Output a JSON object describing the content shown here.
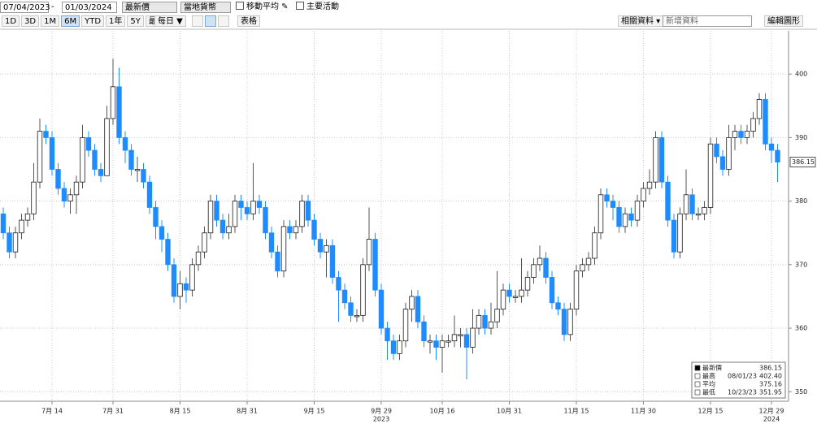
{
  "toolbar": {
    "start_date": "07/04/2023",
    "end_date": "01/03/2024",
    "price_field": "最新價",
    "currency": "當地貨幣",
    "moving_average": "移動平均",
    "key_events": "主要活動",
    "ranges": [
      "1D",
      "3D",
      "1M",
      "6M",
      "YTD",
      "1年",
      "5Y",
      "最大"
    ],
    "selected_range": "6M",
    "frequency": "每日 ▼",
    "table": "表格",
    "related": "相關資料 ▾",
    "add_data": "新增資料",
    "edit_chart": "編輯圖形"
  },
  "chart_data": {
    "type": "candlestick",
    "categories": [
      null,
      null,
      null,
      null,
      null,
      null,
      null,
      null,
      "7月 14",
      null,
      null,
      null,
      null,
      null,
      null,
      null,
      null,
      null,
      "7月 31",
      null,
      null,
      null,
      null,
      null,
      null,
      null,
      null,
      null,
      null,
      "8月 15",
      null,
      null,
      null,
      null,
      null,
      null,
      null,
      null,
      null,
      null,
      "8月 31",
      null,
      null,
      null,
      null,
      null,
      null,
      null,
      null,
      null,
      null,
      "9月 15",
      null,
      null,
      null,
      null,
      null,
      null,
      null,
      null,
      null,
      null,
      "9月 29",
      null,
      null,
      null,
      null,
      null,
      null,
      null,
      null,
      null,
      "10月 16",
      null,
      null,
      null,
      null,
      null,
      null,
      null,
      null,
      null,
      null,
      "10月 31",
      null,
      null,
      null,
      null,
      null,
      null,
      null,
      null,
      null,
      null,
      "11月 15",
      null,
      null,
      null,
      null,
      null,
      null,
      null,
      null,
      null,
      null,
      "11月 30",
      null,
      null,
      null,
      null,
      null,
      null,
      null,
      null,
      null,
      null,
      "12月 15",
      null,
      null,
      null,
      null,
      null,
      null,
      null,
      null,
      null,
      "12月 29",
      null
    ],
    "year_labels": [
      {
        "value": 62,
        "label": "2023"
      },
      {
        "value": 126,
        "label": "2024"
      }
    ],
    "open": [
      378,
      375,
      372,
      375,
      377,
      378,
      383,
      391,
      390,
      385,
      382,
      380,
      381,
      383,
      390,
      388,
      385,
      384,
      393,
      398,
      390,
      388,
      385,
      385,
      383,
      379,
      376,
      374,
      370,
      365,
      367,
      366,
      370,
      372,
      375,
      380,
      377,
      375,
      376,
      380,
      379,
      378,
      380,
      379,
      375,
      372,
      369,
      376,
      375,
      376,
      380,
      377,
      374,
      372,
      373,
      368,
      366,
      364,
      362,
      362,
      370,
      374,
      366,
      360,
      358,
      356,
      358,
      363,
      365,
      361,
      358,
      358,
      357,
      358,
      358,
      359,
      359,
      357,
      360,
      362,
      360,
      361,
      363,
      366,
      365,
      365,
      366,
      368,
      370,
      371,
      368,
      364,
      363,
      359,
      363,
      369,
      370,
      371,
      375,
      381,
      380,
      379,
      376,
      378,
      377,
      380,
      382,
      383,
      390,
      383,
      377,
      372,
      378,
      381,
      378,
      378,
      379,
      389,
      387,
      385,
      390,
      391,
      390,
      391,
      393,
      396,
      389,
      388
    ],
    "high": [
      379,
      376,
      376,
      378,
      379,
      386,
      393,
      392,
      391,
      386,
      383,
      382,
      384,
      392,
      391,
      389,
      386,
      395,
      402.4,
      401,
      391,
      389,
      387,
      386,
      384,
      380,
      377,
      375,
      371,
      369,
      368,
      371,
      373,
      376,
      381,
      381,
      378,
      378,
      381,
      381,
      380,
      386,
      381,
      380,
      376,
      373,
      377,
      377,
      377,
      381,
      381,
      378,
      375,
      374,
      374,
      369,
      367,
      365,
      363,
      371,
      379,
      375,
      367,
      361,
      359,
      359,
      364,
      366,
      366,
      362,
      359,
      359,
      359,
      359,
      362,
      360,
      360,
      363,
      363,
      363,
      364,
      369,
      367,
      367,
      366,
      371,
      369,
      371,
      373,
      372,
      369,
      365,
      364,
      364,
      370,
      371,
      372,
      376,
      382,
      382,
      381,
      380,
      379,
      379,
      381,
      383,
      385,
      391,
      391,
      384,
      378,
      379,
      385,
      382,
      379,
      380,
      390,
      390,
      388,
      392,
      392,
      392,
      392,
      394,
      397,
      397,
      390,
      389
    ],
    "low": [
      374,
      371,
      371,
      374,
      376,
      377,
      382,
      389,
      384,
      381,
      379,
      378,
      378,
      382,
      387,
      384,
      383,
      384,
      392,
      389,
      386,
      384,
      383,
      382,
      378,
      374,
      372,
      369,
      364,
      363,
      364,
      365,
      369,
      371,
      374,
      376,
      374,
      374,
      375,
      377,
      377,
      377,
      378,
      374,
      371,
      368,
      368,
      374,
      374,
      375,
      376,
      373,
      371,
      368,
      367,
      361,
      363,
      361,
      361,
      361,
      369,
      365,
      359,
      355,
      355,
      355,
      357,
      361,
      360,
      357,
      356,
      355,
      353,
      357,
      357,
      357,
      351.95,
      356,
      359,
      359,
      359,
      360,
      362,
      364,
      364,
      364,
      365,
      367,
      369,
      367,
      363,
      362,
      358,
      358,
      362,
      368,
      369,
      370,
      374,
      379,
      377,
      375,
      375,
      376,
      376,
      379,
      381,
      382,
      382,
      376,
      371,
      371,
      377,
      377,
      377,
      377,
      378,
      386,
      384,
      384,
      388,
      389,
      389,
      390,
      392,
      388,
      386,
      383
    ],
    "close": [
      375,
      372,
      375,
      377,
      378,
      383,
      391,
      390,
      385,
      382,
      380,
      381,
      383,
      390,
      388,
      385,
      384,
      393,
      398,
      390,
      388,
      385,
      385,
      383,
      379,
      376,
      374,
      370,
      365,
      367,
      366,
      370,
      372,
      375,
      380,
      377,
      375,
      376,
      380,
      379,
      378,
      380,
      379,
      375,
      372,
      369,
      376,
      375,
      376,
      380,
      377,
      374,
      372,
      373,
      368,
      366,
      364,
      362,
      362,
      370,
      374,
      366,
      360,
      358,
      356,
      358,
      363,
      365,
      361,
      358,
      358,
      357,
      358,
      358,
      359,
      359,
      357,
      360,
      362,
      360,
      361,
      363,
      366,
      365,
      365,
      366,
      368,
      370,
      371,
      368,
      364,
      363,
      359,
      363,
      369,
      370,
      371,
      375,
      381,
      380,
      379,
      376,
      378,
      377,
      380,
      382,
      383,
      390,
      383,
      377,
      372,
      378,
      381,
      378,
      378,
      379,
      389,
      387,
      385,
      390,
      391,
      390,
      391,
      393,
      396,
      389,
      388,
      386.15
    ],
    "up_color": "#ffffff",
    "down_color": "#1e8cff",
    "outline_color": "#1a1a1a",
    "ylim": [
      348.5,
      406.8
    ],
    "yticks": [
      350,
      360,
      370,
      380,
      390,
      400
    ],
    "grid": true,
    "stats": [
      {
        "label": "最新價",
        "value": "386.15"
      },
      {
        "label": "最高",
        "date": "08/01/23",
        "value": "402.40"
      },
      {
        "label": "平均",
        "value": "375.16"
      },
      {
        "label": "最低",
        "date": "10/23/23",
        "value": "351.95"
      }
    ]
  }
}
